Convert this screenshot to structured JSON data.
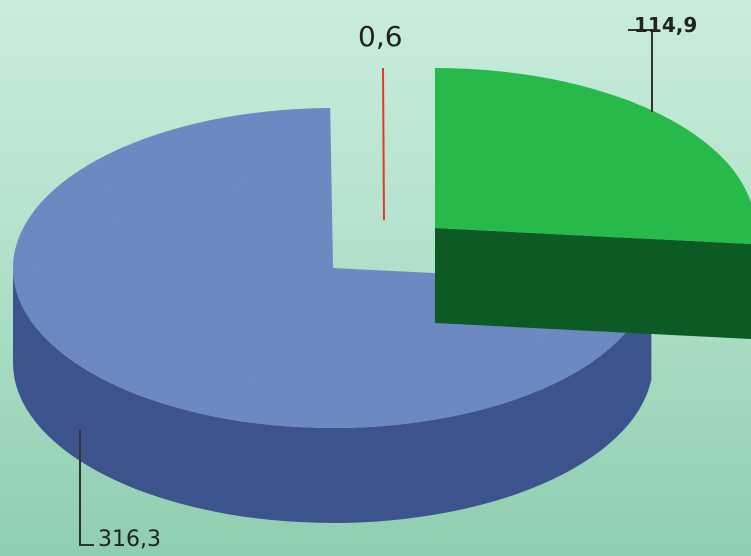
{
  "chart_data": {
    "type": "pie",
    "style": "3d-exploded",
    "values": [
      316.3,
      114.9,
      0.6
    ],
    "labels": [
      "316,3",
      "114,9",
      "0,6"
    ],
    "colors": {
      "slice_blue_top": "#6f8cc6",
      "slice_blue_side": "#3e5590",
      "slice_green_top": "#27b94a",
      "slice_green_side": "#0c5a24",
      "slice_red": "#e23a2a",
      "leader_line": "#333333"
    },
    "title": "",
    "legend": "none"
  }
}
